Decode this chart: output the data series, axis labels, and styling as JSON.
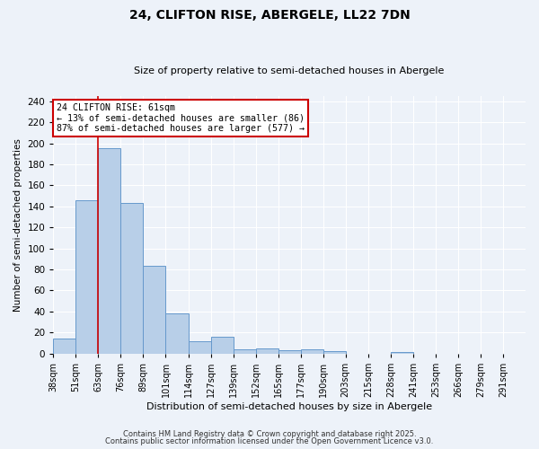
{
  "title": "24, CLIFTON RISE, ABERGELE, LL22 7DN",
  "subtitle": "Size of property relative to semi-detached houses in Abergele",
  "bar_values": [
    14,
    146,
    195,
    143,
    83,
    38,
    12,
    16,
    4,
    5,
    3,
    4,
    2,
    0,
    0,
    1,
    0,
    0,
    0,
    0,
    0
  ],
  "bin_labels": [
    "38sqm",
    "51sqm",
    "63sqm",
    "76sqm",
    "89sqm",
    "101sqm",
    "114sqm",
    "127sqm",
    "139sqm",
    "152sqm",
    "165sqm",
    "177sqm",
    "190sqm",
    "203sqm",
    "215sqm",
    "228sqm",
    "241sqm",
    "253sqm",
    "266sqm",
    "279sqm",
    "291sqm"
  ],
  "bar_color": "#b8cfe8",
  "bar_edge_color": "#6699cc",
  "vline_x": 2.0,
  "vline_color": "#cc0000",
  "annotation_line1": "24 CLIFTON RISE: 61sqm",
  "annotation_line2": "← 13% of semi-detached houses are smaller (86)",
  "annotation_line3": "87% of semi-detached houses are larger (577) →",
  "annotation_box_color": "#ffffff",
  "annotation_box_edge": "#cc0000",
  "ylabel": "Number of semi-detached properties",
  "xlabel": "Distribution of semi-detached houses by size in Abergele",
  "ylim": [
    0,
    245
  ],
  "yticks": [
    0,
    20,
    40,
    60,
    80,
    100,
    120,
    140,
    160,
    180,
    200,
    220,
    240
  ],
  "footer1": "Contains HM Land Registry data © Crown copyright and database right 2025.",
  "footer2": "Contains public sector information licensed under the Open Government Licence v3.0.",
  "bg_color": "#edf2f9",
  "grid_color": "#ffffff",
  "title_fontsize": 10,
  "subtitle_fontsize": 8
}
